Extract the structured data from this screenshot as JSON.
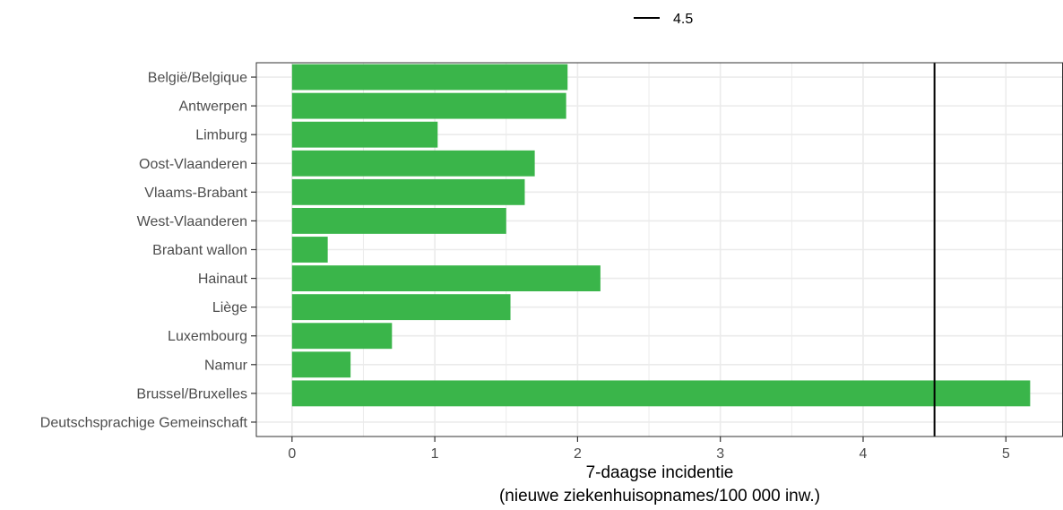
{
  "chart_data": {
    "type": "bar",
    "orientation": "horizontal",
    "categories": [
      "België/Belgique",
      "Antwerpen",
      "Limburg",
      "Oost-Vlaanderen",
      "Vlaams-Brabant",
      "West-Vlaanderen",
      "Brabant wallon",
      "Hainaut",
      "Liège",
      "Luxembourg",
      "Namur",
      "Brussel/Bruxelles",
      "Deutschsprachige Gemeinschaft"
    ],
    "values": [
      1.93,
      1.92,
      1.02,
      1.7,
      1.63,
      1.5,
      0.25,
      2.16,
      1.53,
      0.7,
      0.41,
      5.17,
      0
    ],
    "xlabel_line1": "7-daagse incidentie",
    "xlabel_line2": "(nieuwe ziekenhuisopnames/100 000 inw.)",
    "xlim": [
      -0.25,
      5.4
    ],
    "xticks": [
      0,
      1,
      2,
      3,
      4,
      5
    ],
    "reference_line": {
      "value": 4.5,
      "label": "4.5",
      "color": "#000000"
    },
    "legend_position": "top",
    "grid": true,
    "bar_color": "#3ab54a",
    "grid_color": "#ebebeb"
  }
}
